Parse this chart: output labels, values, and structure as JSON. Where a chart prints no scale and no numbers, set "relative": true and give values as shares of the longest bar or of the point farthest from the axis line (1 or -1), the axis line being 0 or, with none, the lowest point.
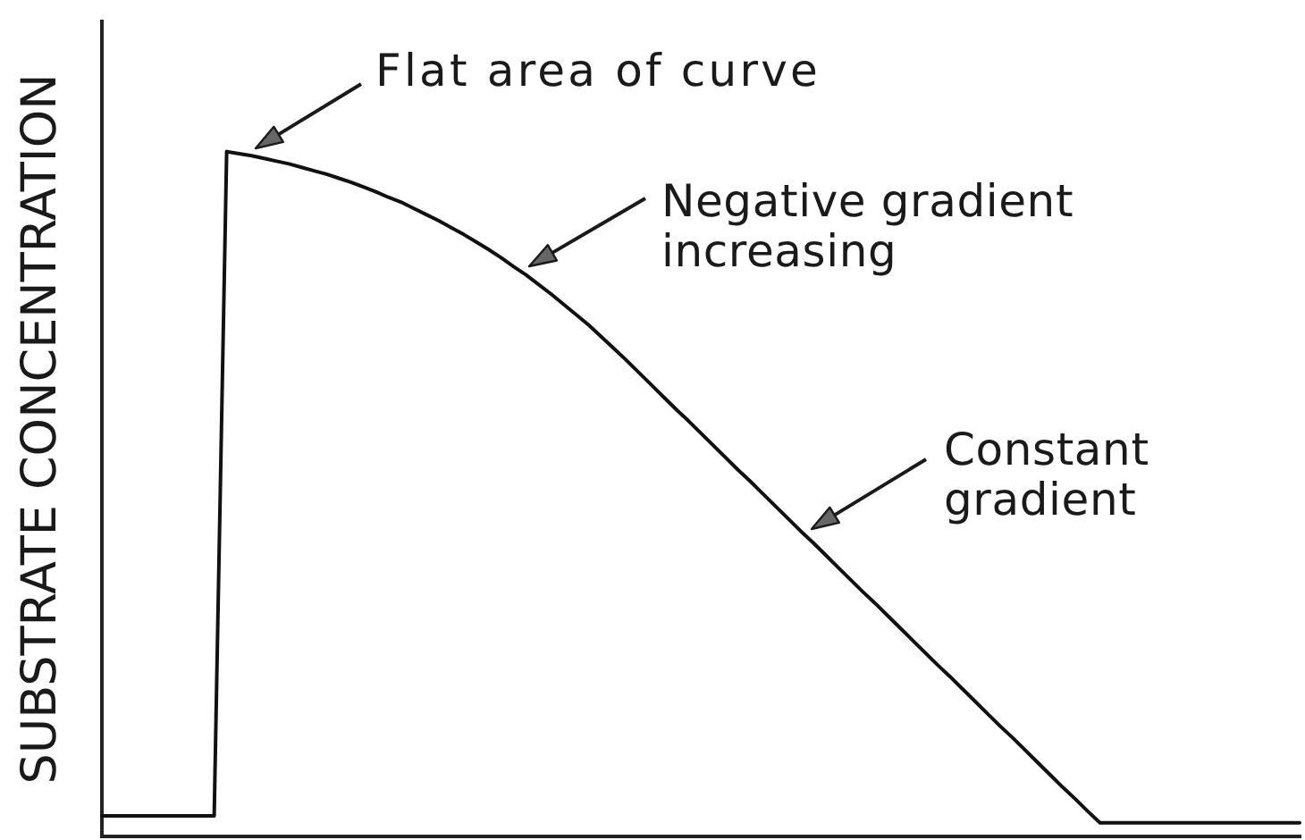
{
  "chart_data": {
    "type": "line",
    "ylabel": "SUBSTRATE CONCENTRATION",
    "annotations": [
      "Flat area of curve",
      "Negative gradient increasing",
      "Constant gradient"
    ],
    "categories": [
      null,
      null,
      null,
      null,
      null,
      null,
      null,
      null,
      null,
      null,
      null,
      null,
      null,
      null,
      null,
      null,
      null,
      null,
      null,
      null,
      null,
      null,
      null,
      null,
      null,
      null,
      null,
      null,
      null,
      null,
      null,
      null,
      null,
      null,
      null,
      null,
      null,
      null,
      null,
      null,
      null,
      null,
      null,
      null,
      null,
      null,
      null,
      null,
      null,
      null,
      null,
      null,
      null,
      null,
      null,
      null,
      null,
      null,
      null,
      null,
      null,
      null,
      null,
      null,
      null,
      null,
      null,
      null,
      null,
      null,
      null,
      null,
      null,
      null,
      null,
      null,
      null,
      null,
      null,
      null,
      null,
      null,
      null,
      null,
      null,
      null,
      null,
      null,
      null,
      null,
      null,
      null,
      null,
      null,
      null,
      null,
      null
    ],
    "values": [
      0.03,
      0.03,
      0.03,
      0.03,
      0.03,
      0.03,
      0.03,
      0.03,
      0.03,
      0.03,
      1,
      0.997,
      0.994,
      0.99,
      0.986,
      0.982,
      0.977,
      0.972,
      0.967,
      0.961,
      0.955,
      0.948,
      0.941,
      0.933,
      0.926,
      0.917,
      0.908,
      0.899,
      0.889,
      0.879,
      0.868,
      0.857,
      0.845,
      0.832,
      0.82,
      0.806,
      0.792,
      0.777,
      0.762,
      0.747,
      0.73,
      0.713,
      0.696,
      0.678,
      0.66,
      0.642,
      0.624,
      0.607,
      0.589,
      0.571,
      0.553,
      0.535,
      0.518,
      0.5,
      0.482,
      0.464,
      0.446,
      0.429,
      0.411,
      0.393,
      0.375,
      0.357,
      0.34,
      0.322,
      0.304,
      0.286,
      0.268,
      0.25,
      0.233,
      0.215,
      0.197,
      0.179,
      0.161,
      0.144,
      0.126,
      0.108,
      0.09,
      0.072,
      0.055,
      0.037,
      0.02,
      0.02,
      0.02,
      0.02,
      0.02,
      0.02,
      0.02,
      0.02,
      0.02,
      0.02,
      0.02,
      0.02,
      0.02,
      0.02,
      0.02,
      0.02,
      0.02
    ],
    "color": "#111111",
    "relative": true,
    "marker": "none"
  }
}
